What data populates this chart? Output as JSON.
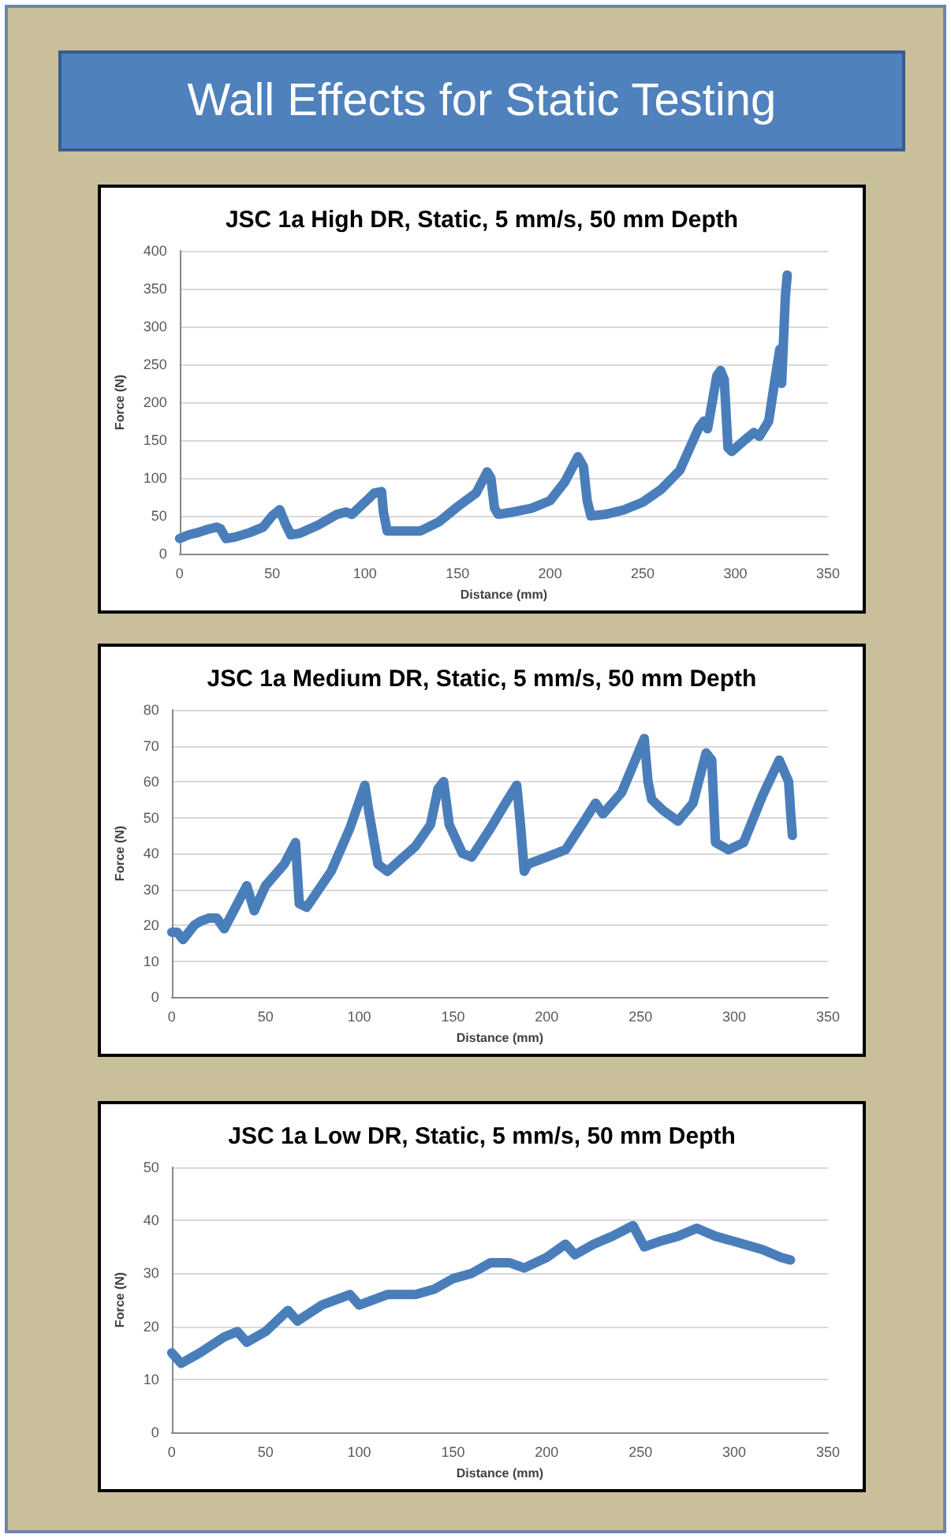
{
  "chart_data": [
    {
      "type": "line",
      "title": "JSC 1a High DR, Static, 5 mm/s, 50 mm Depth",
      "annotations": [
        "Wall Effects for Static Testing"
      ],
      "xlabel": "Distance (mm)",
      "ylabel": "Force (N)",
      "color": "#4a7ebb",
      "grid": "y",
      "line_style": "solid",
      "xlim": [
        0,
        350
      ],
      "xticks": [
        0,
        50,
        100,
        150,
        200,
        250,
        300,
        350
      ],
      "ylim": [
        0,
        400
      ],
      "yticks": [
        0,
        50,
        100,
        150,
        200,
        250,
        300,
        350,
        400
      ],
      "x": [
        0,
        5,
        10,
        15,
        20,
        22,
        25,
        30,
        38,
        45,
        50,
        54,
        57,
        60,
        65,
        75,
        85,
        90,
        93,
        100,
        105,
        109,
        110,
        112,
        120,
        130,
        140,
        150,
        160,
        166,
        168,
        170,
        172,
        180,
        190,
        200,
        208,
        215,
        218,
        220,
        222,
        230,
        240,
        250,
        260,
        270,
        280,
        283,
        285,
        290,
        292,
        294,
        296,
        298,
        305,
        310,
        313,
        318,
        322,
        324,
        325,
        327,
        328
      ],
      "values": [
        20,
        25,
        28,
        32,
        35,
        33,
        20,
        22,
        28,
        35,
        50,
        58,
        40,
        25,
        27,
        38,
        52,
        55,
        52,
        68,
        80,
        82,
        55,
        30,
        30,
        30,
        42,
        62,
        80,
        108,
        100,
        60,
        52,
        55,
        60,
        70,
        95,
        128,
        115,
        70,
        50,
        52,
        58,
        68,
        85,
        110,
        165,
        175,
        165,
        235,
        242,
        230,
        140,
        135,
        150,
        160,
        155,
        175,
        240,
        270,
        225,
        340,
        368
      ]
    },
    {
      "type": "line",
      "title": "JSC 1a Medium DR, Static, 5 mm/s, 50 mm Depth",
      "xlabel": "Distance (mm)",
      "ylabel": "Force (N)",
      "color": "#4a7ebb",
      "grid": "y",
      "line_style": "solid",
      "xlim": [
        0,
        350
      ],
      "xticks": [
        0,
        50,
        100,
        150,
        200,
        250,
        300,
        350
      ],
      "ylim": [
        0,
        80
      ],
      "yticks": [
        0,
        10,
        20,
        30,
        40,
        50,
        60,
        70,
        80
      ],
      "x": [
        0,
        3,
        6,
        12,
        15,
        20,
        24,
        28,
        35,
        40,
        44,
        50,
        60,
        66,
        68,
        72,
        85,
        95,
        103,
        105,
        110,
        115,
        130,
        138,
        142,
        145,
        148,
        155,
        160,
        170,
        178,
        184,
        186,
        188,
        190,
        200,
        210,
        220,
        226,
        230,
        240,
        248,
        252,
        254,
        256,
        262,
        270,
        278,
        285,
        288,
        290,
        297,
        305,
        315,
        324,
        329,
        330,
        331
      ],
      "values": [
        18,
        18,
        16,
        20,
        21,
        22,
        22,
        19,
        26,
        31,
        24,
        31,
        37,
        43,
        26,
        25,
        35,
        47,
        59,
        52,
        37,
        35,
        42,
        48,
        58,
        60,
        48,
        40,
        39,
        47,
        54,
        59,
        48,
        35,
        37,
        39,
        41,
        49,
        54,
        51,
        57,
        67,
        72,
        60,
        55,
        52,
        49,
        54,
        68,
        66,
        43,
        41,
        43,
        56,
        66,
        60,
        52,
        45
      ]
    },
    {
      "type": "line",
      "title": "JSC 1a Low DR, Static, 5 mm/s, 50 mm Depth",
      "xlabel": "Distance (mm)",
      "ylabel": "Force (N)",
      "color": "#4a7ebb",
      "grid": "y",
      "line_style": "solid",
      "xlim": [
        0,
        350
      ],
      "xticks": [
        0,
        50,
        100,
        150,
        200,
        250,
        300,
        350
      ],
      "ylim": [
        0,
        50
      ],
      "yticks": [
        0,
        10,
        20,
        30,
        40,
        50
      ],
      "x": [
        0,
        5,
        15,
        28,
        35,
        40,
        50,
        62,
        67,
        80,
        95,
        100,
        115,
        130,
        140,
        150,
        160,
        170,
        180,
        188,
        200,
        210,
        215,
        225,
        235,
        246,
        252,
        260,
        270,
        280,
        290,
        300,
        315,
        325,
        330
      ],
      "values": [
        15,
        13,
        15,
        18,
        19,
        17,
        19,
        23,
        21,
        24,
        26,
        24,
        26,
        26,
        27,
        29,
        30,
        32,
        32,
        31,
        33,
        35.5,
        33.5,
        35.5,
        37,
        39,
        35,
        36,
        37,
        38.5,
        37,
        36,
        34.5,
        33,
        32.5
      ]
    }
  ]
}
